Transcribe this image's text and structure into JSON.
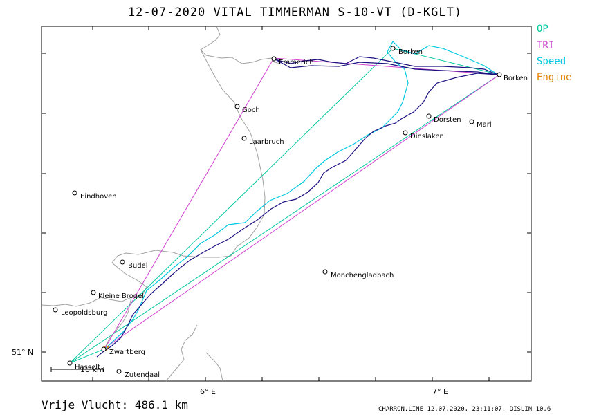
{
  "title": "12-07-2020   VITAL TIMMERMAN   S-10-VT (D-KGLT)",
  "legend": [
    {
      "label": "OP",
      "color": "#00c8a0"
    },
    {
      "label": "TRI",
      "color": "#d040d0"
    },
    {
      "label": "Speed",
      "color": "#00c8e0"
    },
    {
      "label": "Engine",
      "color": "#e08000"
    }
  ],
  "axes": {
    "x_ticks": [
      "6° E",
      "7° E"
    ],
    "y_ticks": [
      "51° N"
    ]
  },
  "scale_label": "10  km",
  "cities": [
    {
      "name": "Emmerich"
    },
    {
      "name": "Borken"
    },
    {
      "name": "Borken"
    },
    {
      "name": "Goch"
    },
    {
      "name": "Dorsten"
    },
    {
      "name": "Marl"
    },
    {
      "name": "Laarbruch"
    },
    {
      "name": "Dinslaken"
    },
    {
      "name": "Eindhoven"
    },
    {
      "name": "Budel"
    },
    {
      "name": "Monchengladbach"
    },
    {
      "name": "Kleine Brogel"
    },
    {
      "name": "Leopoldsburg"
    },
    {
      "name": "Zwartberg"
    },
    {
      "name": "Hasselt"
    },
    {
      "name": "Zutendaal"
    }
  ],
  "footer": {
    "distance": "Vrije Vlucht:  486.1 km",
    "credit": "CHARRON.LINE 12.07.2020, 23:11:07, DISLIN 10.6"
  }
}
